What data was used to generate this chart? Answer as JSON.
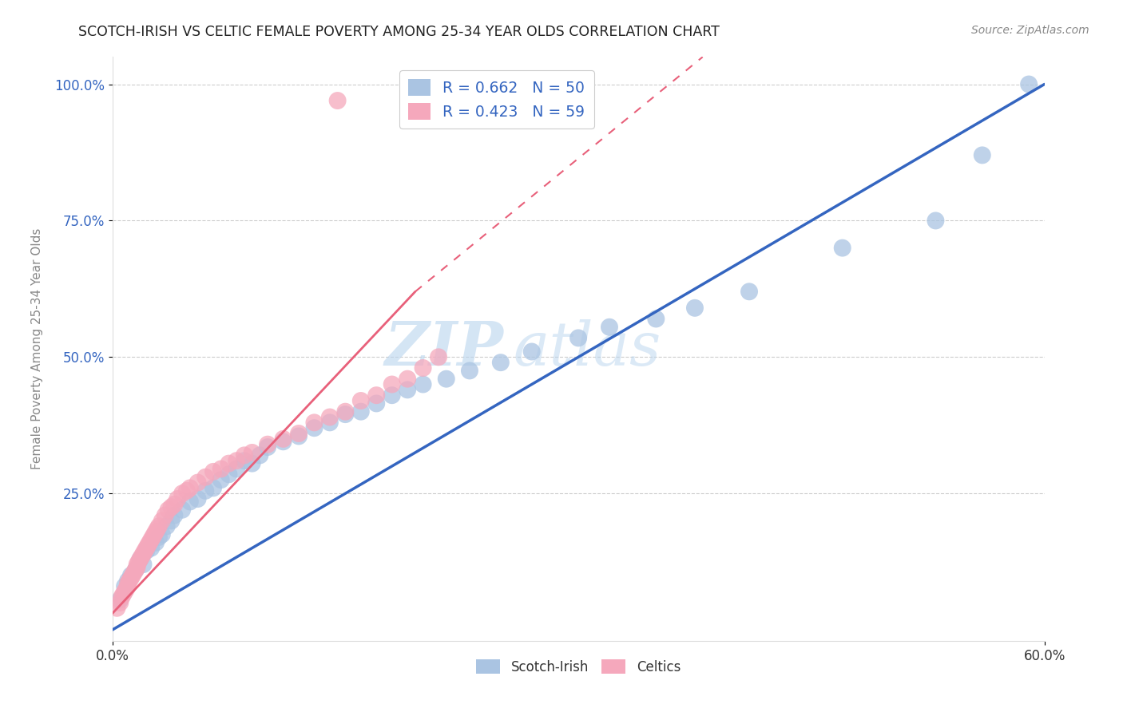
{
  "title": "SCOTCH-IRISH VS CELTIC FEMALE POVERTY AMONG 25-34 YEAR OLDS CORRELATION CHART",
  "source": "Source: ZipAtlas.com",
  "ylabel_label": "Female Poverty Among 25-34 Year Olds",
  "watermark_zip": "ZIP",
  "watermark_atlas": "atlas",
  "legend_line1": "R = 0.662   N = 50",
  "legend_line2": "R = 0.423   N = 59",
  "legend_label_scotch": "Scotch-Irish",
  "legend_label_celtics": "Celtics",
  "scotch_irish_color": "#aac4e2",
  "celtics_color": "#f5a8bc",
  "scotch_irish_line_color": "#3465c0",
  "celtics_line_color": "#e8607a",
  "xlim": [
    0.0,
    0.6
  ],
  "ylim": [
    -0.02,
    1.05
  ],
  "si_x": [
    0.005,
    0.008,
    0.01,
    0.012,
    0.015,
    0.018,
    0.02,
    0.022,
    0.025,
    0.028,
    0.03,
    0.032,
    0.035,
    0.038,
    0.04,
    0.045,
    0.05,
    0.055,
    0.06,
    0.065,
    0.07,
    0.075,
    0.08,
    0.085,
    0.09,
    0.095,
    0.1,
    0.11,
    0.12,
    0.13,
    0.14,
    0.15,
    0.16,
    0.17,
    0.18,
    0.19,
    0.2,
    0.215,
    0.23,
    0.25,
    0.27,
    0.3,
    0.32,
    0.35,
    0.375,
    0.41,
    0.47,
    0.53,
    0.56,
    0.59
  ],
  "si_y": [
    0.055,
    0.08,
    0.09,
    0.1,
    0.11,
    0.13,
    0.12,
    0.145,
    0.15,
    0.16,
    0.17,
    0.175,
    0.19,
    0.2,
    0.21,
    0.22,
    0.235,
    0.24,
    0.255,
    0.26,
    0.275,
    0.285,
    0.295,
    0.31,
    0.305,
    0.32,
    0.335,
    0.345,
    0.355,
    0.37,
    0.38,
    0.395,
    0.4,
    0.415,
    0.43,
    0.44,
    0.45,
    0.46,
    0.475,
    0.49,
    0.51,
    0.535,
    0.555,
    0.57,
    0.59,
    0.62,
    0.7,
    0.75,
    0.87,
    1.0
  ],
  "ce_x": [
    0.003,
    0.005,
    0.006,
    0.007,
    0.008,
    0.009,
    0.01,
    0.01,
    0.011,
    0.012,
    0.013,
    0.014,
    0.015,
    0.016,
    0.016,
    0.017,
    0.018,
    0.019,
    0.02,
    0.021,
    0.022,
    0.023,
    0.024,
    0.025,
    0.026,
    0.027,
    0.028,
    0.029,
    0.03,
    0.032,
    0.034,
    0.036,
    0.038,
    0.04,
    0.042,
    0.045,
    0.048,
    0.05,
    0.055,
    0.06,
    0.065,
    0.07,
    0.075,
    0.08,
    0.085,
    0.09,
    0.1,
    0.11,
    0.12,
    0.13,
    0.14,
    0.15,
    0.16,
    0.17,
    0.18,
    0.19,
    0.2,
    0.21,
    0.145
  ],
  "ce_y": [
    0.04,
    0.05,
    0.06,
    0.065,
    0.07,
    0.075,
    0.08,
    0.085,
    0.09,
    0.095,
    0.1,
    0.105,
    0.11,
    0.115,
    0.12,
    0.125,
    0.13,
    0.135,
    0.14,
    0.145,
    0.15,
    0.155,
    0.16,
    0.165,
    0.17,
    0.175,
    0.18,
    0.185,
    0.19,
    0.2,
    0.21,
    0.22,
    0.225,
    0.23,
    0.24,
    0.25,
    0.255,
    0.26,
    0.27,
    0.28,
    0.29,
    0.295,
    0.305,
    0.31,
    0.32,
    0.325,
    0.34,
    0.35,
    0.36,
    0.38,
    0.39,
    0.4,
    0.42,
    0.43,
    0.45,
    0.46,
    0.48,
    0.5,
    0.97
  ],
  "si_line_x0": 0.0,
  "si_line_y0": 0.0,
  "si_line_x1": 0.6,
  "si_line_y1": 1.0,
  "ce_line_x0": 0.0,
  "ce_line_y0": 0.03,
  "ce_line_x1": 0.195,
  "ce_line_y1": 0.62,
  "ce_line_dash_x0": 0.195,
  "ce_line_dash_y0": 0.62,
  "ce_line_dash_x1": 0.38,
  "ce_line_dash_y1": 1.05
}
